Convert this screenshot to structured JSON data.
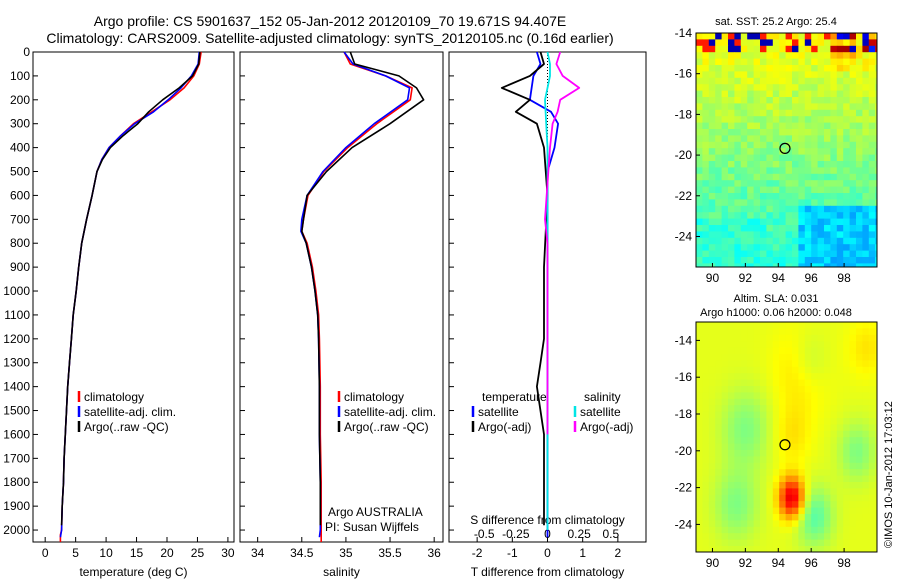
{
  "figure": {
    "title_line1": "Argo profile: CS 5901637_152 05-Jan-2012 20120109_70 19.671S 94.407E",
    "title_line2": "Climatology: CARS2009. Satellite-adjusted climatology: synTS_20120105.nc (0.16d earlier)",
    "credit": "©IMOS 10-Jan-2012 17:03:12"
  },
  "colors": {
    "climatology": "#ff0000",
    "satellite": "#0000ff",
    "argo": "#000000",
    "sal_satellite": "#00e5e5",
    "sal_argo": "#ff00ff"
  },
  "chart_data": [
    {
      "type": "line",
      "id": "temperature",
      "xlabel": "temperature (deg C)",
      "ylabel": "",
      "xlim": [
        -2,
        31
      ],
      "ylim": [
        2050,
        0
      ],
      "xticks": [
        0,
        5,
        10,
        15,
        20,
        25,
        30
      ],
      "yticks": [
        0,
        100,
        200,
        300,
        400,
        500,
        600,
        700,
        800,
        900,
        1000,
        1100,
        1200,
        1300,
        1400,
        1500,
        1600,
        1700,
        1800,
        1900,
        2000
      ],
      "legend": [
        "climatology",
        "satellite-adj. clim.",
        "Argo(..raw -QC)"
      ],
      "series": [
        {
          "name": "climatology",
          "color": "#ff0000",
          "x": [
            25.6,
            25.3,
            24.4,
            22.8,
            20.5,
            17.5,
            14.5,
            12.4,
            10.5,
            9.3,
            8.5,
            7.7,
            6.8,
            6.0,
            5.5,
            5.1,
            4.6,
            4.3,
            4.0,
            3.7,
            3.5,
            3.3,
            3.1,
            3.0,
            2.8,
            2.7,
            2.5,
            2.5
          ],
          "y": [
            0,
            50,
            100,
            150,
            200,
            250,
            300,
            350,
            400,
            450,
            500,
            600,
            700,
            800,
            900,
            1000,
            1100,
            1200,
            1300,
            1400,
            1500,
            1600,
            1700,
            1800,
            1900,
            2000,
            2020,
            2050
          ]
        },
        {
          "name": "satellite-adj. clim.",
          "color": "#0000ff",
          "x": [
            25.3,
            25.1,
            24.0,
            22.3,
            20.2,
            17.8,
            14.7,
            12.4,
            10.5,
            9.3,
            8.5,
            7.7,
            6.8,
            6.0,
            5.5,
            5.1,
            4.6,
            4.3,
            4.0,
            3.7,
            3.5,
            3.3,
            3.1,
            3.0,
            2.8,
            2.7,
            2.5
          ],
          "y": [
            0,
            50,
            100,
            150,
            200,
            250,
            300,
            350,
            400,
            450,
            500,
            600,
            700,
            800,
            900,
            1000,
            1100,
            1200,
            1300,
            1400,
            1500,
            1600,
            1700,
            1800,
            1900,
            2000,
            2030
          ]
        },
        {
          "name": "Argo(..raw -QC)",
          "color": "#000000",
          "x": [
            25.4,
            25.2,
            24.2,
            22.0,
            19.3,
            17.0,
            15.2,
            12.8,
            10.7,
            9.4,
            8.5,
            7.7,
            6.8,
            6.0,
            5.5,
            5.1,
            4.6,
            4.3,
            4.0,
            3.7,
            3.5,
            3.3,
            3.1,
            3.0,
            2.8,
            2.7
          ],
          "y": [
            0,
            50,
            100,
            150,
            200,
            250,
            300,
            350,
            400,
            450,
            500,
            600,
            700,
            800,
            900,
            1000,
            1100,
            1200,
            1300,
            1400,
            1500,
            1600,
            1700,
            1800,
            1900,
            1980
          ]
        }
      ]
    },
    {
      "type": "line",
      "id": "salinity",
      "xlabel": "salinity",
      "ylabel": "",
      "xlim": [
        33.8,
        36.1
      ],
      "ylim": [
        2050,
        0
      ],
      "xticks": [
        34,
        34.5,
        35,
        35.5,
        36
      ],
      "legend": [
        "climatology",
        "satellite-adj. clim.",
        "Argo(..raw -QC)"
      ],
      "annotation": [
        "Argo AUSTRALIA",
        "PI: Susan Wijffels"
      ],
      "series": [
        {
          "name": "climatology",
          "color": "#ff0000",
          "x": [
            34.98,
            35.05,
            35.45,
            35.75,
            35.73,
            35.35,
            35.02,
            34.75,
            34.57,
            34.52,
            34.5,
            34.56,
            34.62,
            34.66,
            34.69,
            34.7,
            34.71,
            34.71,
            34.72,
            34.72,
            34.72,
            34.72,
            34.72
          ],
          "y": [
            0,
            50,
            100,
            150,
            200,
            300,
            400,
            500,
            600,
            700,
            750,
            800,
            900,
            1000,
            1100,
            1200,
            1400,
            1600,
            1800,
            1900,
            2000,
            2020,
            2050
          ]
        },
        {
          "name": "satellite-adj. clim.",
          "color": "#0000ff",
          "x": [
            34.98,
            35.08,
            35.45,
            35.72,
            35.7,
            35.32,
            35.0,
            34.74,
            34.56,
            34.5,
            34.49,
            34.55,
            34.61,
            34.65,
            34.68,
            34.69,
            34.7,
            34.7,
            34.71,
            34.71,
            34.71,
            34.7
          ],
          "y": [
            0,
            50,
            100,
            150,
            200,
            300,
            400,
            500,
            600,
            700,
            750,
            800,
            900,
            1000,
            1100,
            1200,
            1400,
            1600,
            1800,
            1900,
            2000,
            2030
          ]
        },
        {
          "name": "Argo(..raw -QC)",
          "color": "#000000",
          "x": [
            35.05,
            35.1,
            35.6,
            35.8,
            35.88,
            35.5,
            35.07,
            34.78,
            34.56,
            34.52,
            34.5,
            34.55,
            34.61,
            34.65,
            34.68,
            34.69,
            34.7,
            34.7,
            34.71,
            34.71
          ],
          "y": [
            0,
            50,
            100,
            150,
            200,
            300,
            400,
            500,
            600,
            700,
            750,
            800,
            900,
            1000,
            1100,
            1200,
            1400,
            1600,
            1800,
            1980
          ]
        }
      ]
    },
    {
      "type": "line",
      "id": "differences",
      "xlabel": "T difference from climatology",
      "xlabel_top": "S difference from climatology",
      "xlim": [
        -2.8,
        2.8
      ],
      "ylim": [
        2050,
        0
      ],
      "xticks": [
        -2,
        -1,
        0,
        1,
        2
      ],
      "xticks_sal": [
        -0.5,
        -0.25,
        0,
        0.25,
        0.5
      ],
      "legend_temperature": [
        "temperature",
        "satellite",
        "Argo(-adj)"
      ],
      "legend_salinity": [
        "salinity",
        "satellite",
        "Argo(-adj)"
      ],
      "series": [
        {
          "name": "T satellite",
          "color": "#0000ff",
          "x": [
            -0.3,
            -0.2,
            -0.4,
            -0.5,
            0.1,
            0.3,
            0.2,
            0.0,
            0.0,
            0.0,
            0.0,
            0.0,
            0.0,
            0.0,
            0.0,
            0.0,
            0.0
          ],
          "y": [
            0,
            50,
            100,
            200,
            250,
            300,
            400,
            500,
            700,
            800,
            1000,
            1200,
            1400,
            1600,
            1800,
            2000,
            2030
          ]
        },
        {
          "name": "T Argo(-adj)",
          "color": "#000000",
          "x": [
            -0.2,
            -0.1,
            -0.5,
            -1.3,
            -0.5,
            -0.9,
            -0.3,
            -0.1,
            0.0,
            -0.1,
            -0.1,
            -0.2,
            -0.3,
            -0.1,
            -0.1,
            -0.1,
            -0.1
          ],
          "y": [
            0,
            50,
            100,
            150,
            200,
            250,
            300,
            400,
            600,
            900,
            1200,
            1300,
            1400,
            1600,
            1800,
            1900,
            1980
          ]
        },
        {
          "name": "S satellite",
          "color": "#00e5e5",
          "x": [
            0.0,
            0.02,
            0.02,
            -0.02,
            -0.01,
            0.0,
            0.0,
            0.0,
            0.0,
            0.0,
            0.0,
            0.0
          ],
          "y": [
            0,
            50,
            100,
            200,
            300,
            400,
            600,
            800,
            1000,
            1400,
            1800,
            2000
          ]
        },
        {
          "name": "S Argo(-adj)",
          "color": "#ff00ff",
          "x": [
            0.1,
            0.07,
            0.12,
            0.25,
            0.1,
            0.08,
            0.04,
            0.02,
            -0.02,
            0.0,
            0.0,
            0.0,
            0.0
          ],
          "y": [
            0,
            50,
            100,
            150,
            200,
            250,
            300,
            400,
            700,
            800,
            1000,
            1400,
            1600
          ]
        }
      ]
    },
    {
      "type": "heatmap",
      "id": "sst",
      "title": "sat. SST: 25.2  Argo: 25.4",
      "xlim": [
        89,
        100
      ],
      "ylim": [
        -25.5,
        -14
      ],
      "xticks": [
        90,
        92,
        94,
        96,
        98
      ],
      "yticks": [
        -14,
        -16,
        -18,
        -20,
        -22,
        -24
      ],
      "marker": {
        "lon": 94.407,
        "lat": -19.671
      }
    },
    {
      "type": "heatmap",
      "id": "sla",
      "title_line1": "Altim. SLA: 0.031",
      "title_line2": "Argo h1000: 0.06 h2000: 0.048",
      "xlim": [
        89,
        100
      ],
      "ylim": [
        -25.5,
        -13
      ],
      "xticks": [
        90,
        92,
        94,
        96,
        98
      ],
      "yticks": [
        -14,
        -16,
        -18,
        -20,
        -22,
        -24
      ],
      "marker": {
        "lon": 94.407,
        "lat": -19.671
      }
    }
  ]
}
